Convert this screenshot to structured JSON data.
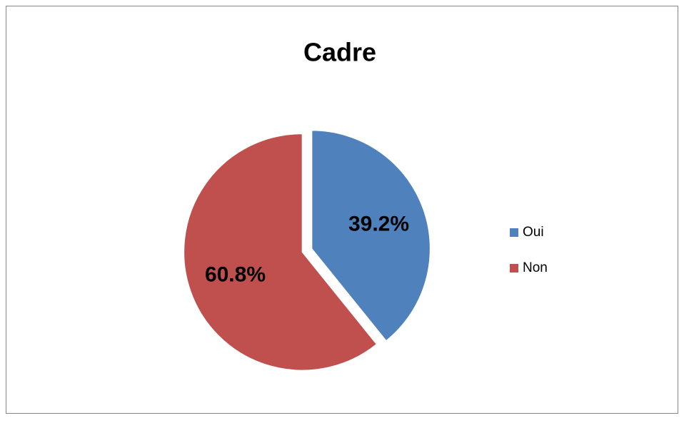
{
  "chart_data": {
    "type": "pie",
    "title": "Cadre",
    "categories": [
      "Oui",
      "Non"
    ],
    "values": [
      39.2,
      60.8
    ],
    "value_labels": [
      "39.2%",
      "60.8%"
    ],
    "colors": [
      "#4f81bd",
      "#c0504d"
    ],
    "legend": "right"
  }
}
